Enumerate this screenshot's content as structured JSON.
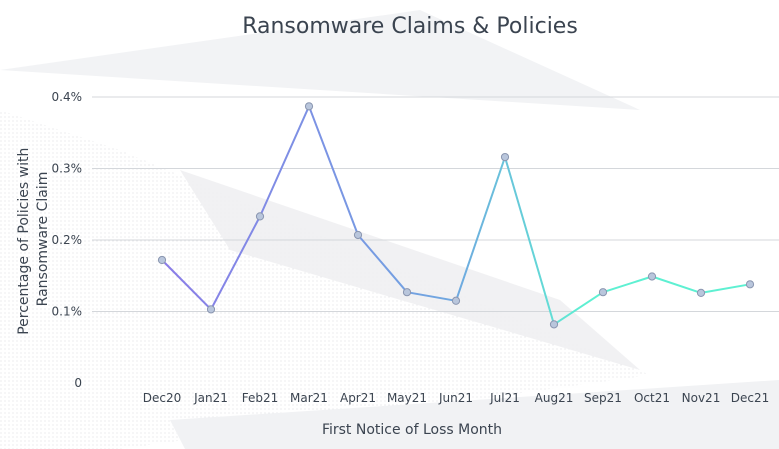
{
  "chart_data": {
    "type": "line",
    "title": "Ransomware Claims & Policies",
    "xlabel": "First Notice of Loss Month",
    "ylabel_lines": [
      "Percentage of  Policies with",
      "Ransomware Claim"
    ],
    "categories": [
      "Dec20",
      "Jan21",
      "Feb21",
      "Mar21",
      "Apr21",
      "May21",
      "Jun21",
      "Jul21",
      "Aug21",
      "Sep21",
      "Oct21",
      "Nov21",
      "Dec21"
    ],
    "values": [
      0.172,
      0.103,
      0.233,
      0.387,
      0.207,
      0.127,
      0.115,
      0.316,
      0.082,
      0.127,
      0.149,
      0.126,
      0.138
    ],
    "ylim": [
      0,
      0.4
    ],
    "yticks": [
      0,
      0.1,
      0.2,
      0.3,
      0.4
    ],
    "ytick_labels": [
      "0",
      "0.1%",
      "0.2%",
      "0.3%",
      "0.4%"
    ],
    "grid": true,
    "colors": {
      "start": "#8a7be8",
      "mid": "#6fa8e0",
      "end": "#5ef0d2",
      "marker_fill": "#b9c6dc",
      "marker_stroke": "#8a96b0"
    }
  }
}
